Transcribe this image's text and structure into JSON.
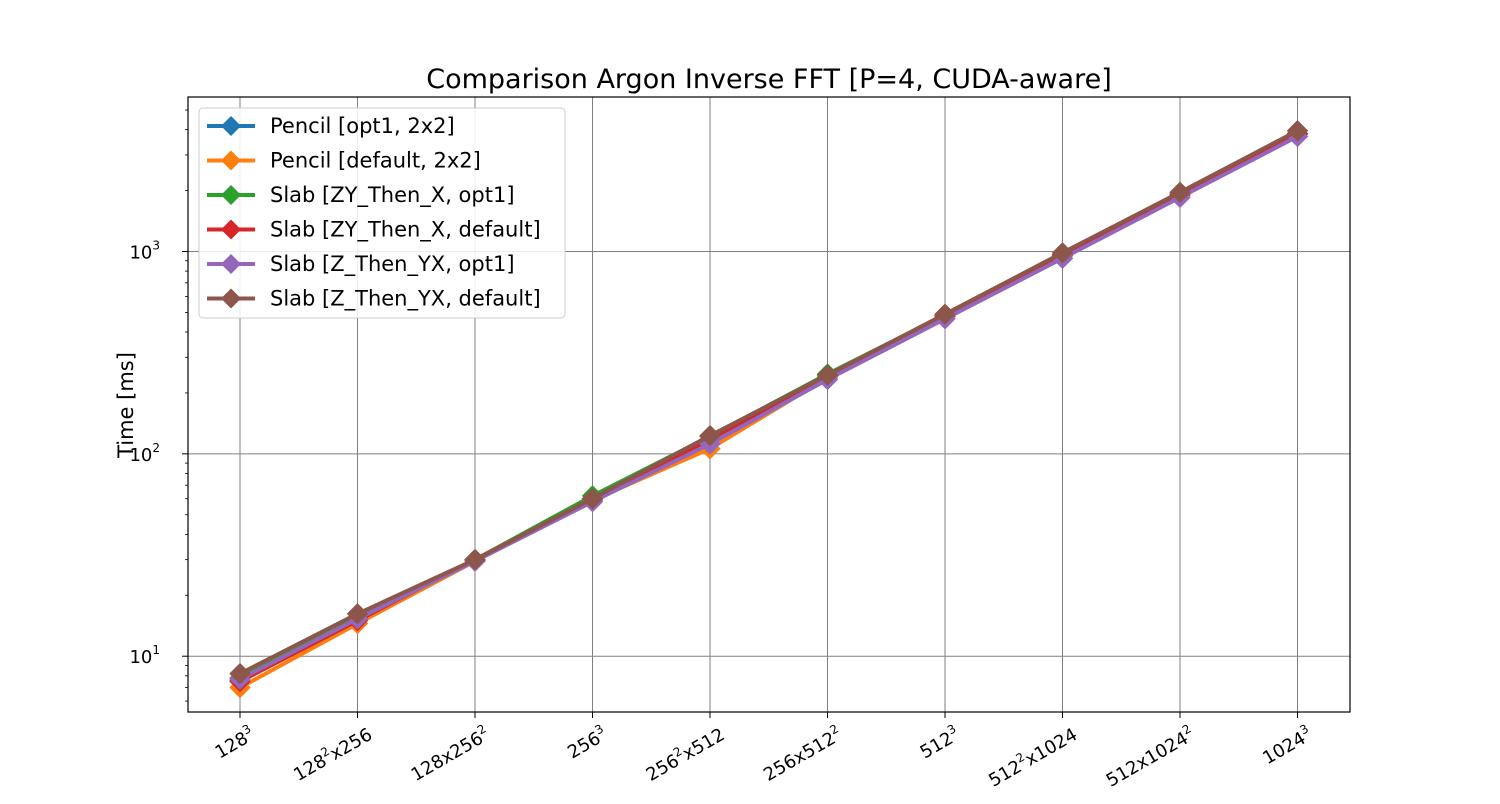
{
  "chart_data": {
    "type": "line",
    "title": "Comparison Argon Inverse FFT [P=4, CUDA-aware]",
    "xlabel": "",
    "ylabel": "Time [ms]",
    "yscale": "log",
    "ylim": [
      5.3,
      5800
    ],
    "grid": true,
    "legend_position": "top-left",
    "categories": [
      {
        "base": "128",
        "sup": "3",
        "tail": ""
      },
      {
        "base": "128",
        "sup": "2",
        "tail": "x256"
      },
      {
        "base": "128x256",
        "sup": "2",
        "tail": ""
      },
      {
        "base": "256",
        "sup": "3",
        "tail": ""
      },
      {
        "base": "256",
        "sup": "2",
        "tail": "x512"
      },
      {
        "base": "256x512",
        "sup": "2",
        "tail": ""
      },
      {
        "base": "512",
        "sup": "3",
        "tail": ""
      },
      {
        "base": "512",
        "sup": "2",
        "tail": "x1024"
      },
      {
        "base": "512x1024",
        "sup": "2",
        "tail": ""
      },
      {
        "base": "1024",
        "sup": "3",
        "tail": ""
      }
    ],
    "yticks": [
      {
        "value": 10,
        "base": "10",
        "sup": "1"
      },
      {
        "value": 100,
        "base": "10",
        "sup": "2"
      },
      {
        "value": 1000,
        "base": "10",
        "sup": "3"
      }
    ],
    "series": [
      {
        "name": "Pencil [opt1, 2x2]",
        "color": "#1f77b4",
        "values": [
          7.6,
          15.2,
          29.8,
          60,
          115,
          240,
          478,
          955,
          1900,
          3800
        ]
      },
      {
        "name": "Pencil [default, 2x2]",
        "color": "#ff7f0e",
        "values": [
          7.0,
          14.5,
          29.5,
          59,
          106,
          238,
          475,
          950,
          1900,
          3800
        ]
      },
      {
        "name": "Slab [ZY_Then_X, opt1]",
        "color": "#2ca02c",
        "values": [
          7.8,
          15.5,
          30,
          62,
          122,
          248,
          485,
          965,
          1920,
          3830
        ]
      },
      {
        "name": "Slab [ZY_Then_X, default]",
        "color": "#d62728",
        "values": [
          7.5,
          15.0,
          30,
          60,
          118,
          245,
          480,
          960,
          1910,
          3820
        ]
      },
      {
        "name": "Slab [Z_Then_YX, opt1]",
        "color": "#9467bd",
        "values": [
          7.7,
          15.3,
          29.5,
          58,
          112,
          233,
          465,
          925,
          1850,
          3700
        ]
      },
      {
        "name": "Slab [Z_Then_YX, default]",
        "color": "#8c564b",
        "values": [
          8.2,
          16.2,
          30,
          60,
          123,
          245,
          490,
          985,
          1960,
          3950
        ]
      }
    ]
  }
}
